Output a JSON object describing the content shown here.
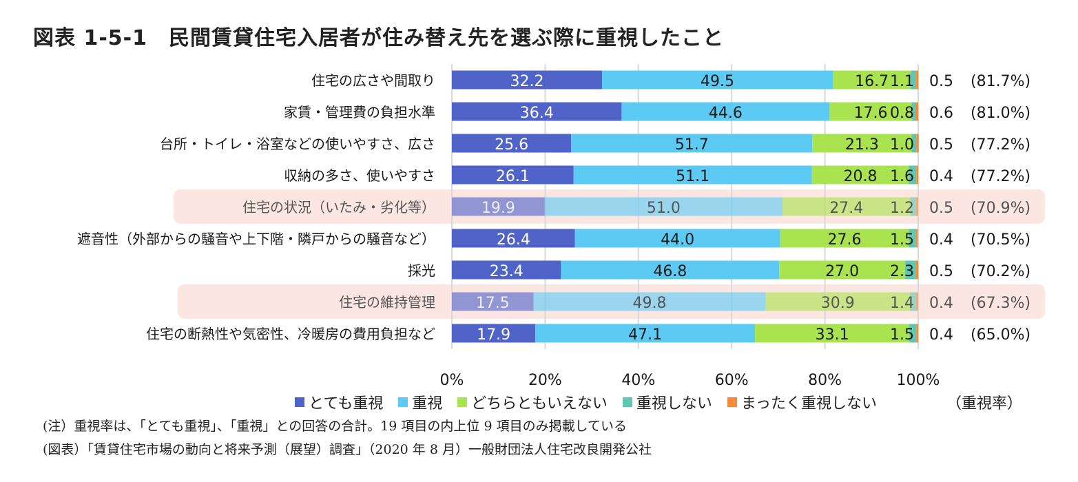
{
  "title": "図表 1-5-1　民間賃貸住宅入居者が住み替え先を選ぶ際に重視したこと",
  "chart_data": {
    "type": "bar",
    "orientation": "horizontal",
    "stacked": true,
    "title": "図表 1-5-1　民間賃貸住宅入居者が住み替え先を選ぶ際に重視したこと",
    "categories": [
      "住宅の広さや間取り",
      "家賃・管理費の負担水準",
      "台所・トイレ・浴室などの使いやすさ、広さ",
      "収納の多さ、使いやすさ",
      "住宅の状況（いたみ・劣化等）",
      "遮音性（外部からの騒音や上下階・隣戸からの騒音など）",
      "採光",
      "住宅の維持管理",
      "住宅の断熱性や気密性、冷暖房の費用負担など"
    ],
    "highlighted": [
      false,
      false,
      false,
      false,
      true,
      false,
      false,
      true,
      false
    ],
    "series": [
      {
        "name": "とても重視",
        "color": "#4f63c9",
        "values": [
          32.2,
          36.4,
          25.6,
          26.1,
          19.9,
          26.4,
          23.4,
          17.5,
          17.9
        ]
      },
      {
        "name": "重視",
        "color": "#5ccaf2",
        "values": [
          49.5,
          44.6,
          51.7,
          51.1,
          51.0,
          44.0,
          46.8,
          49.8,
          47.1
        ]
      },
      {
        "name": "どちらともいえない",
        "color": "#a9e34f",
        "values": [
          16.7,
          17.6,
          21.3,
          20.8,
          27.4,
          27.6,
          27.0,
          30.9,
          33.1
        ]
      },
      {
        "name": "重視しない",
        "color": "#5fc8b2",
        "values": [
          1.1,
          0.8,
          1.0,
          1.6,
          1.2,
          1.5,
          2.3,
          1.4,
          1.5
        ]
      },
      {
        "name": "まったく重視しない",
        "color": "#f58a3b",
        "values": [
          0.5,
          0.6,
          0.5,
          0.4,
          0.5,
          0.4,
          0.5,
          0.4,
          0.4
        ]
      }
    ],
    "series_labels": [
      [
        "32.2",
        "36.4",
        "25.6",
        "26.1",
        "19.9",
        "26.4",
        "23.4",
        "17.5",
        "17.9"
      ],
      [
        "49.5",
        "44.6",
        "51.7",
        "51.1",
        "51.0",
        "44.0",
        "46.8",
        "49.8",
        "47.1"
      ],
      [
        "16.7",
        "17.6",
        "21.3",
        "20.8",
        "27.4",
        "27.6",
        "27.0",
        "30.9",
        "33.1"
      ],
      [
        "1.1",
        "0.8",
        "1.0",
        "1.6",
        "1.2",
        "1.5",
        "2.3",
        "1.4",
        "1.5"
      ],
      [
        "0.5",
        "0.6",
        "0.5",
        "0.4",
        "0.5",
        "0.4",
        "0.5",
        "0.4",
        "0.4"
      ]
    ],
    "importance_rates": [
      "(81.7%)",
      "(81.0%)",
      "(77.2%)",
      "(77.2%)",
      "(70.9%)",
      "(70.5%)",
      "(70.2%)",
      "(67.3%)",
      "(65.0%)"
    ],
    "x_ticks": [
      "0%",
      "20%",
      "40%",
      "60%",
      "80%",
      "100%"
    ],
    "x_tick_values": [
      0,
      20,
      40,
      60,
      80,
      100
    ],
    "xlim": [
      0,
      100
    ],
    "grid": true,
    "legend_position": "bottom",
    "legend_note": "（重視率）"
  },
  "notes": [
    "(注）重視率は、「とても重視」、「重視」との回答の合計。19 項目の内上位 9 項目のみ掲載している",
    "(図表）「賃貸住宅市場の動向と将来予測（展望）調査」（2020 年 8 月）一般財団法人住宅改良開発公社"
  ]
}
